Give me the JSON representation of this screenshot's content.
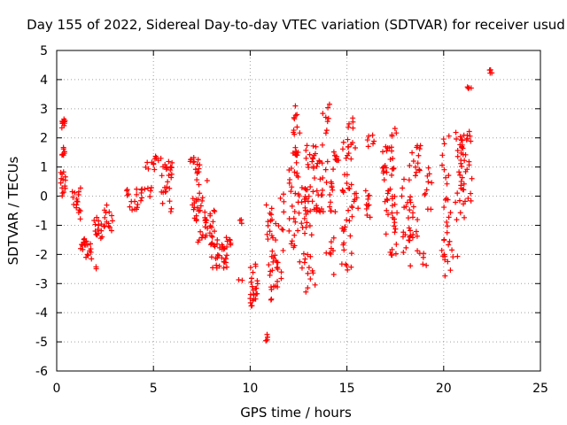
{
  "chart_data": {
    "type": "scatter",
    "title": "Day 155 of 2022, Sidereal Day-to-day VTEC variation (SDTVAR) for receiver usud",
    "xlabel": "GPS time / hours",
    "ylabel": "SDTVAR / TECUs",
    "xlim": [
      0,
      25
    ],
    "ylim": [
      -6,
      5
    ],
    "xticks": [
      0,
      5,
      10,
      15,
      20,
      25
    ],
    "yticks": [
      -6,
      -5,
      -4,
      -3,
      -2,
      -1,
      0,
      1,
      2,
      3,
      4,
      5
    ],
    "grid": true,
    "marker": "+",
    "series": [
      {
        "name": "SDTVAR",
        "color": "#ff0000",
        "clusters": [
          {
            "x0": 0.25,
            "x1": 0.45,
            "y0": 2.3,
            "y1": 2.65,
            "n": 10
          },
          {
            "x0": 0.25,
            "x1": 0.45,
            "y0": 1.4,
            "y1": 1.7,
            "n": 8
          },
          {
            "x0": 0.2,
            "x1": 0.45,
            "y0": 0.0,
            "y1": 0.9,
            "n": 14
          },
          {
            "x0": 0.8,
            "x1": 1.3,
            "y0": -0.8,
            "y1": 0.3,
            "n": 16
          },
          {
            "x0": 1.2,
            "x1": 1.8,
            "y0": -1.9,
            "y1": -1.4,
            "n": 14
          },
          {
            "x0": 1.5,
            "x1": 1.8,
            "y0": -2.2,
            "y1": -1.8,
            "n": 6
          },
          {
            "x0": 1.9,
            "x1": 2.1,
            "y0": -2.6,
            "y1": -2.4,
            "n": 2
          },
          {
            "x0": 1.9,
            "x1": 2.4,
            "y0": -1.5,
            "y1": -0.7,
            "n": 14
          },
          {
            "x0": 2.4,
            "x1": 2.9,
            "y0": -1.2,
            "y1": -0.3,
            "n": 14
          },
          {
            "x0": 3.5,
            "x1": 4.2,
            "y0": -0.5,
            "y1": 0.4,
            "n": 14
          },
          {
            "x0": 4.3,
            "x1": 4.9,
            "y0": -0.2,
            "y1": 0.3,
            "n": 10
          },
          {
            "x0": 4.6,
            "x1": 5.1,
            "y0": 0.9,
            "y1": 1.3,
            "n": 8
          },
          {
            "x0": 5.1,
            "x1": 5.4,
            "y0": 1.1,
            "y1": 1.4,
            "n": 4
          },
          {
            "x0": 5.4,
            "x1": 6.0,
            "y0": -0.7,
            "y1": 1.2,
            "n": 26
          },
          {
            "x0": 6.9,
            "x1": 7.4,
            "y0": 0.6,
            "y1": 1.4,
            "n": 14
          },
          {
            "x0": 7.0,
            "x1": 7.5,
            "y0": -0.8,
            "y1": 0.2,
            "n": 12
          },
          {
            "x0": 7.2,
            "x1": 7.8,
            "y0": -1.6,
            "y1": 0.9,
            "n": 20
          },
          {
            "x0": 7.6,
            "x1": 8.2,
            "y0": -1.8,
            "y1": -0.4,
            "n": 20
          },
          {
            "x0": 8.0,
            "x1": 8.8,
            "y0": -2.5,
            "y1": -1.5,
            "n": 30
          },
          {
            "x0": 8.7,
            "x1": 9.1,
            "y0": -1.7,
            "y1": -1.2,
            "n": 6
          },
          {
            "x0": 9.4,
            "x1": 9.6,
            "y0": -0.95,
            "y1": -0.8,
            "n": 3
          },
          {
            "x0": 9.4,
            "x1": 9.6,
            "y0": -2.95,
            "y1": -2.85,
            "n": 2
          },
          {
            "x0": 10.0,
            "x1": 10.4,
            "y0": -3.8,
            "y1": -2.3,
            "n": 24
          },
          {
            "x0": 10.8,
            "x1": 11.0,
            "y0": -5.0,
            "y1": -4.7,
            "n": 5
          },
          {
            "x0": 10.8,
            "x1": 11.2,
            "y0": -2.5,
            "y1": -0.3,
            "n": 16
          },
          {
            "x0": 11.0,
            "x1": 11.5,
            "y0": -3.6,
            "y1": -2.0,
            "n": 14
          },
          {
            "x0": 11.3,
            "x1": 11.8,
            "y0": -2.9,
            "y1": 0.8,
            "n": 18
          },
          {
            "x0": 12.0,
            "x1": 12.5,
            "y0": -1.8,
            "y1": 1.3,
            "n": 26
          },
          {
            "x0": 12.2,
            "x1": 12.6,
            "y0": 1.2,
            "y1": 3.1,
            "n": 18
          },
          {
            "x0": 12.5,
            "x1": 13.0,
            "y0": -2.6,
            "y1": 0.5,
            "n": 18
          },
          {
            "x0": 12.8,
            "x1": 13.4,
            "y0": -3.3,
            "y1": 1.9,
            "n": 36
          },
          {
            "x0": 13.2,
            "x1": 13.8,
            "y0": -0.8,
            "y1": 1.8,
            "n": 28
          },
          {
            "x0": 13.7,
            "x1": 14.1,
            "y0": 1.5,
            "y1": 3.2,
            "n": 8
          },
          {
            "x0": 13.8,
            "x1": 14.4,
            "y0": -2.7,
            "y1": 1.6,
            "n": 24
          },
          {
            "x0": 14.3,
            "x1": 14.7,
            "y0": 1.1,
            "y1": 1.5,
            "n": 6
          },
          {
            "x0": 14.7,
            "x1": 15.3,
            "y0": -2.6,
            "y1": 1.9,
            "n": 36
          },
          {
            "x0": 15.0,
            "x1": 15.5,
            "y0": 1.5,
            "y1": 2.8,
            "n": 10
          },
          {
            "x0": 15.3,
            "x1": 15.6,
            "y0": -0.5,
            "y1": 0.2,
            "n": 6
          },
          {
            "x0": 15.8,
            "x1": 16.2,
            "y0": -0.8,
            "y1": 0.4,
            "n": 10
          },
          {
            "x0": 16.0,
            "x1": 16.4,
            "y0": 1.7,
            "y1": 2.1,
            "n": 6
          },
          {
            "x0": 16.8,
            "x1": 17.5,
            "y0": -0.2,
            "y1": 1.7,
            "n": 30
          },
          {
            "x0": 17.0,
            "x1": 17.6,
            "y0": -2.1,
            "y1": -0.1,
            "n": 20
          },
          {
            "x0": 17.3,
            "x1": 17.6,
            "y0": 2.0,
            "y1": 2.5,
            "n": 4
          },
          {
            "x0": 17.8,
            "x1": 18.3,
            "y0": -2.6,
            "y1": 0.6,
            "n": 22
          },
          {
            "x0": 18.2,
            "x1": 18.8,
            "y0": -1.7,
            "y1": 1.9,
            "n": 24
          },
          {
            "x0": 18.6,
            "x1": 19.1,
            "y0": -2.5,
            "y1": -1.8,
            "n": 6
          },
          {
            "x0": 19.0,
            "x1": 19.4,
            "y0": -0.5,
            "y1": 1.0,
            "n": 10
          },
          {
            "x0": 19.9,
            "x1": 20.4,
            "y0": -3.0,
            "y1": 2.1,
            "n": 30
          },
          {
            "x0": 20.4,
            "x1": 20.8,
            "y0": -2.1,
            "y1": -1.8,
            "n": 3
          },
          {
            "x0": 20.4,
            "x1": 21.2,
            "y0": -0.9,
            "y1": 2.2,
            "n": 28
          },
          {
            "x0": 20.9,
            "x1": 21.4,
            "y0": 1.5,
            "y1": 2.6,
            "n": 14
          },
          {
            "x0": 21.1,
            "x1": 21.5,
            "y0": -0.3,
            "y1": 1.8,
            "n": 10
          },
          {
            "x0": 21.2,
            "x1": 21.5,
            "y0": 3.5,
            "y1": 3.75,
            "n": 4
          },
          {
            "x0": 22.3,
            "x1": 22.5,
            "y0": 4.0,
            "y1": 4.4,
            "n": 4
          }
        ]
      }
    ]
  }
}
